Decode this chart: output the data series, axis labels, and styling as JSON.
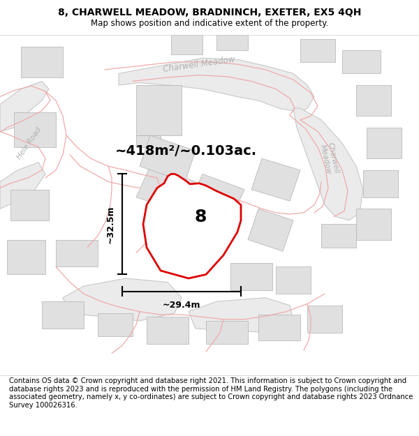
{
  "title": "8, CHARWELL MEADOW, BRADNINCH, EXETER, EX5 4QH",
  "subtitle": "Map shows position and indicative extent of the property.",
  "footer": "Contains OS data © Crown copyright and database right 2021. This information is subject to Crown copyright and database rights 2023 and is reproduced with the permission of HM Land Registry. The polygons (including the associated geometry, namely x, y co-ordinates) are subject to Crown copyright and database rights 2023 Ordnance Survey 100026316.",
  "area_label": "~418m²/~0.103ac.",
  "width_label": "~29.4m",
  "height_label": "~32.5m",
  "plot_number": "8",
  "map_bg": "#ffffff",
  "road_fill_color": "#ebebeb",
  "road_outline_color": "#c8c8c8",
  "building_fill": "#e0e0e0",
  "building_border": "#b0b0b0",
  "street_line_color": "#f0aaaa",
  "highlight_color": "#dd0000",
  "street_name_color": "#b0b0b0",
  "dim_line_color": "#000000",
  "title_fontsize": 10,
  "subtitle_fontsize": 8.5,
  "footer_fontsize": 7.2,
  "area_fontsize": 14,
  "dim_fontsize": 9,
  "plot_label_fontsize": 18,
  "street_label_fontsize": 8.5
}
